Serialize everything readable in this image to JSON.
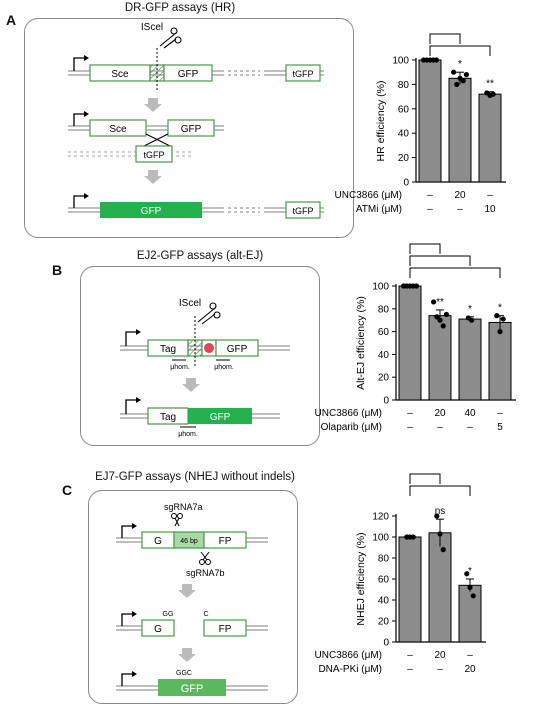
{
  "panels": [
    {
      "letter": "A",
      "title": "DR-GFP assays (HR)"
    },
    {
      "letter": "B",
      "title": "EJ2-GFP assays (alt-EJ)"
    },
    {
      "letter": "C",
      "title": "EJ7-GFP assays (NHEJ without indels)"
    }
  ],
  "schematic_a": {
    "enzyme": "IScel",
    "sce": "Sce",
    "gfp": "GFP",
    "tgfp": "tGFP",
    "gfp_filled": "GFP"
  },
  "schematic_b": {
    "enzyme": "IScel",
    "tag": "Tag",
    "gfp": "GFP",
    "uhom": "μhom.",
    "stop": "stop",
    "gfp_filled": "GFP"
  },
  "schematic_c": {
    "guide_top": "sgRNA7a",
    "guide_bottom": "sgRNA7b",
    "bp": "46 bp",
    "g": "G",
    "fp": "FP",
    "gg": "GG",
    "c": "C",
    "ggc": "GGC",
    "gfp_filled": "GFP"
  },
  "colors": {
    "bar": "#8c8c8c",
    "green": "#22b14c",
    "box_outline": "#4a9a4a"
  },
  "chart_data": [
    {
      "type": "bar",
      "ylabel": "HR efficiency (%)",
      "ylim": [
        0,
        100
      ],
      "yticks": [
        "0",
        "20",
        "40",
        "60",
        "80",
        "100"
      ],
      "categories": [
        "control",
        "UNC3866 20",
        "ATMi 10"
      ],
      "values": [
        100,
        85,
        72
      ],
      "errors": [
        0,
        5,
        2
      ],
      "points": [
        [
          100,
          100,
          100,
          100,
          100
        ],
        [
          90,
          80,
          85,
          83,
          88
        ],
        [
          73,
          71,
          72
        ]
      ],
      "significance": [
        "",
        "*",
        "**"
      ],
      "treatments": [
        {
          "label": "UNC3866 (μM)",
          "values": [
            "–",
            "20",
            "–"
          ]
        },
        {
          "label": "ATMi (μM)",
          "values": [
            "–",
            "–",
            "10"
          ]
        }
      ],
      "brackets": [
        [
          0,
          1
        ],
        [
          0,
          2
        ]
      ]
    },
    {
      "type": "bar",
      "ylabel": "Alt-EJ efficiency (%)",
      "ylim": [
        0,
        100
      ],
      "yticks": [
        "0",
        "20",
        "40",
        "60",
        "80",
        "100"
      ],
      "categories": [
        "control",
        "UNC3866 20",
        "UNC3866 40",
        "Olaparib 5"
      ],
      "values": [
        100,
        74,
        71,
        68
      ],
      "errors": [
        0,
        5,
        2,
        6
      ],
      "points": [
        [
          100,
          100,
          100,
          100,
          100
        ],
        [
          86,
          73,
          70,
          65,
          75
        ],
        [
          72,
          70
        ],
        [
          74,
          60,
          71
        ]
      ],
      "significance": [
        "",
        "**",
        "*",
        "*"
      ],
      "treatments": [
        {
          "label": "UNC3866 (μM)",
          "values": [
            "–",
            "20",
            "40",
            "–"
          ]
        },
        {
          "label": "Olaparib (μM)",
          "values": [
            "–",
            "–",
            "–",
            "5"
          ]
        }
      ],
      "brackets": [
        [
          0,
          1
        ],
        [
          0,
          2
        ],
        [
          0,
          3
        ]
      ]
    },
    {
      "type": "bar",
      "ylabel": "NHEJ efficiency (%)",
      "ylim": [
        0,
        120
      ],
      "yticks": [
        "0",
        "20",
        "40",
        "60",
        "80",
        "100",
        "120"
      ],
      "categories": [
        "control",
        "UNC3866 20",
        "DNA-PKi 20"
      ],
      "values": [
        100,
        104,
        54
      ],
      "errors": [
        0,
        13,
        6
      ],
      "points": [
        [
          100,
          100,
          100
        ],
        [
          120,
          103,
          88
        ],
        [
          65,
          52,
          44
        ]
      ],
      "significance": [
        "",
        "ns",
        "*"
      ],
      "treatments": [
        {
          "label": "UNC3866 (μM)",
          "values": [
            "–",
            "20",
            "–"
          ]
        },
        {
          "label": "DNA-PKi (μM)",
          "values": [
            "–",
            "–",
            "20"
          ]
        }
      ],
      "brackets": [
        [
          0,
          1
        ],
        [
          0,
          2
        ]
      ]
    }
  ]
}
